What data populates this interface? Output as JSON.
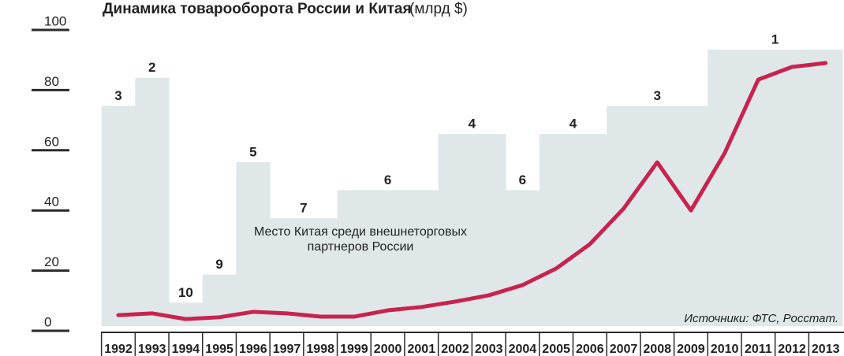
{
  "chart_data": {
    "type": "line",
    "title": "Динамика товарооборота России и Китая",
    "unit": "(млрд $)",
    "categories": [
      "1992",
      "1993",
      "1994",
      "1995",
      "1996",
      "1997",
      "1998",
      "1999",
      "2000",
      "2001",
      "2002",
      "2003",
      "2004",
      "2005",
      "2006",
      "2007",
      "2008",
      "2009",
      "2010",
      "2011",
      "2012",
      "2013"
    ],
    "series": [
      {
        "color": "#c8234f",
        "values": [
          5.2,
          5.8,
          3.9,
          4.5,
          6.3,
          5.8,
          4.7,
          4.7,
          6.8,
          7.9,
          9.7,
          11.8,
          15.2,
          20.7,
          28.8,
          40.6,
          56,
          40,
          59,
          83.5,
          87.7,
          89
        ]
      },
      {
        "type": "step",
        "axis": "y2",
        "color": "#dfe7e9",
        "values": [
          3,
          2,
          10,
          9,
          5,
          7,
          7,
          6,
          6,
          6,
          4,
          4,
          6,
          4,
          4,
          3,
          3,
          3,
          1,
          1,
          1,
          1
        ]
      }
    ],
    "ylim": [
      0,
      100
    ],
    "yticks": [
      0,
      20,
      40,
      60,
      80,
      100
    ],
    "y2lim": [
      11,
      0.3
    ],
    "annotation": [
      "Место Китая среди внешнеторговых",
      "партнеров России"
    ],
    "source": "Источники: ФТС, Росстат."
  }
}
